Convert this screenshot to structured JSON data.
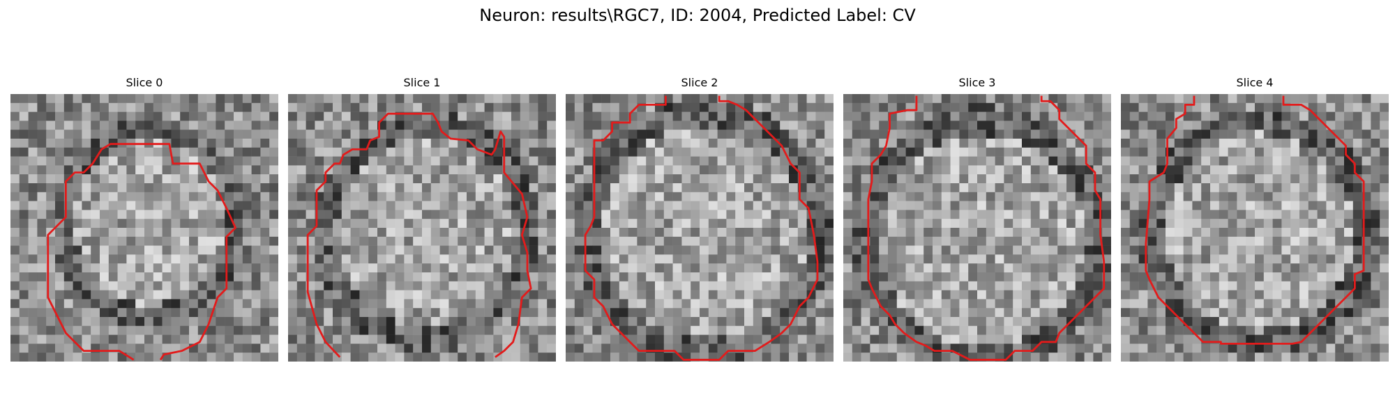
{
  "figure": {
    "title": "Neuron: results\\RGC7, ID: 2004, Predicted Label: CV"
  },
  "style": {
    "contour_color": "#e31b1b"
  },
  "slices": [
    {
      "title": "Slice 0",
      "seed": 11,
      "center": [
        15.5,
        14.5
      ],
      "radii": [
        9.5,
        10.5
      ],
      "contour": [
        [
          13.8,
          29.8
        ],
        [
          12.2,
          28.8
        ],
        [
          8.2,
          28.8
        ],
        [
          6.2,
          26.8
        ],
        [
          5.2,
          24.8
        ],
        [
          4.2,
          22.8
        ],
        [
          4.2,
          15.8
        ],
        [
          5.2,
          14.8
        ],
        [
          6.2,
          13.8
        ],
        [
          6.2,
          9.8
        ],
        [
          7.2,
          8.8
        ],
        [
          8.2,
          8.8
        ],
        [
          9.2,
          7.8
        ],
        [
          10.2,
          6.2
        ],
        [
          11.2,
          5.6
        ],
        [
          17.8,
          5.6
        ],
        [
          18.2,
          7.8
        ],
        [
          21.2,
          7.8
        ],
        [
          22.2,
          9.8
        ],
        [
          23.2,
          10.8
        ],
        [
          24.2,
          12.8
        ],
        [
          25.2,
          15.0
        ],
        [
          24.2,
          16.0
        ],
        [
          24.2,
          21.8
        ],
        [
          23.2,
          22.8
        ],
        [
          22.2,
          25.8
        ],
        [
          21.2,
          27.8
        ],
        [
          19.2,
          28.8
        ],
        [
          17.2,
          29.2
        ],
        [
          16.8,
          29.8
        ]
      ]
    },
    {
      "title": "Slice 1",
      "seed": 23,
      "center": [
        15.5,
        15.5
      ],
      "radii": [
        11.5,
        12.0
      ],
      "contour": [
        [
          5.8,
          29.5
        ],
        [
          4.2,
          27.8
        ],
        [
          3.2,
          25.8
        ],
        [
          2.2,
          22.2
        ],
        [
          2.2,
          15.8
        ],
        [
          3.2,
          14.8
        ],
        [
          3.2,
          12.8
        ],
        [
          3.2,
          10.8
        ],
        [
          4.2,
          9.8
        ],
        [
          4.2,
          8.8
        ],
        [
          5.2,
          7.8
        ],
        [
          5.8,
          7.8
        ],
        [
          6.2,
          6.8
        ],
        [
          7.2,
          6.2
        ],
        [
          8.8,
          6.2
        ],
        [
          9.2,
          5.2
        ],
        [
          10.2,
          4.8
        ],
        [
          10.2,
          3.2
        ],
        [
          11.2,
          2.2
        ],
        [
          16.2,
          2.2
        ],
        [
          16.8,
          3.2
        ],
        [
          17.2,
          4.2
        ],
        [
          18.2,
          5.0
        ],
        [
          20.2,
          5.2
        ],
        [
          21.2,
          6.2
        ],
        [
          22.8,
          6.8
        ],
        [
          23.2,
          6.2
        ],
        [
          23.8,
          4.2
        ],
        [
          24.2,
          4.8
        ],
        [
          24.2,
          6.8
        ],
        [
          24.2,
          8.8
        ],
        [
          25.2,
          10.0
        ],
        [
          26.2,
          11.2
        ],
        [
          26.8,
          13.8
        ],
        [
          26.2,
          15.8
        ],
        [
          26.8,
          17.8
        ],
        [
          26.8,
          19.8
        ],
        [
          27.2,
          21.8
        ],
        [
          26.2,
          22.8
        ],
        [
          25.8,
          25.8
        ],
        [
          25.2,
          27.8
        ],
        [
          24.2,
          28.8
        ],
        [
          23.2,
          29.5
        ]
      ]
    },
    {
      "title": "Slice 2",
      "seed": 37,
      "center": [
        15.5,
        15.5
      ],
      "radii": [
        13.0,
        13.5
      ],
      "contour": [
        [
          11.2,
          0.2
        ],
        [
          11.2,
          1.2
        ],
        [
          10.2,
          1.2
        ],
        [
          8.2,
          1.2
        ],
        [
          7.2,
          2.2
        ],
        [
          7.2,
          3.2
        ],
        [
          5.2,
          3.2
        ],
        [
          5.2,
          4.2
        ],
        [
          4.2,
          5.2
        ],
        [
          3.2,
          5.2
        ],
        [
          3.2,
          7.8
        ],
        [
          3.2,
          13.8
        ],
        [
          2.8,
          14.8
        ],
        [
          2.2,
          15.8
        ],
        [
          2.2,
          19.8
        ],
        [
          3.2,
          20.8
        ],
        [
          3.2,
          22.8
        ],
        [
          4.2,
          23.8
        ],
        [
          5.2,
          25.8
        ],
        [
          6.2,
          26.8
        ],
        [
          7.2,
          27.8
        ],
        [
          8.2,
          28.8
        ],
        [
          12.2,
          28.8
        ],
        [
          13.2,
          29.8
        ],
        [
          17.2,
          29.8
        ],
        [
          18.2,
          28.8
        ],
        [
          21.2,
          28.8
        ],
        [
          22.8,
          27.8
        ],
        [
          24.2,
          26.8
        ],
        [
          25.2,
          25.8
        ],
        [
          26.2,
          23.8
        ],
        [
          27.2,
          22.8
        ],
        [
          28.2,
          20.8
        ],
        [
          28.2,
          18.8
        ],
        [
          27.8,
          15.8
        ],
        [
          27.2,
          12.8
        ],
        [
          26.2,
          11.8
        ],
        [
          26.2,
          9.8
        ],
        [
          26.2,
          8.8
        ],
        [
          25.2,
          7.8
        ],
        [
          24.2,
          5.8
        ],
        [
          23.2,
          4.8
        ],
        [
          22.2,
          3.8
        ],
        [
          21.2,
          2.8
        ],
        [
          20.2,
          1.8
        ],
        [
          19.2,
          1.2
        ],
        [
          18.2,
          0.8
        ],
        [
          17.2,
          0.8
        ],
        [
          17.2,
          0.2
        ]
      ]
    },
    {
      "title": "Slice 3",
      "seed": 53,
      "center": [
        15.5,
        16.5
      ],
      "radii": [
        13.0,
        13.5
      ],
      "contour": [
        [
          8.2,
          0.2
        ],
        [
          8.2,
          1.8
        ],
        [
          7.2,
          1.8
        ],
        [
          5.2,
          2.2
        ],
        [
          5.2,
          3.8
        ],
        [
          4.8,
          5.8
        ],
        [
          4.2,
          6.8
        ],
        [
          3.2,
          7.8
        ],
        [
          3.2,
          9.8
        ],
        [
          2.8,
          11.8
        ],
        [
          2.8,
          20.8
        ],
        [
          3.2,
          21.8
        ],
        [
          4.2,
          23.8
        ],
        [
          5.2,
          24.8
        ],
        [
          5.8,
          25.8
        ],
        [
          6.8,
          26.8
        ],
        [
          8.2,
          27.8
        ],
        [
          9.2,
          28.2
        ],
        [
          10.2,
          28.8
        ],
        [
          12.2,
          28.8
        ],
        [
          14.2,
          29.8
        ],
        [
          18.2,
          29.8
        ],
        [
          19.2,
          28.8
        ],
        [
          21.2,
          28.8
        ],
        [
          22.2,
          27.8
        ],
        [
          23.8,
          27.8
        ],
        [
          24.2,
          26.8
        ],
        [
          25.2,
          25.8
        ],
        [
          26.2,
          24.8
        ],
        [
          27.2,
          23.8
        ],
        [
          28.2,
          22.8
        ],
        [
          29.2,
          21.8
        ],
        [
          29.2,
          18.8
        ],
        [
          28.8,
          15.8
        ],
        [
          28.8,
          11.8
        ],
        [
          28.2,
          10.8
        ],
        [
          28.2,
          8.8
        ],
        [
          27.2,
          7.8
        ],
        [
          27.2,
          5.8
        ],
        [
          26.2,
          4.8
        ],
        [
          25.2,
          3.8
        ],
        [
          24.2,
          2.8
        ],
        [
          24.2,
          1.8
        ],
        [
          23.2,
          0.8
        ],
        [
          22.2,
          0.8
        ],
        [
          22.2,
          0.2
        ]
      ]
    },
    {
      "title": "Slice 4",
      "seed": 71,
      "center": [
        15.5,
        15.5
      ],
      "radii": [
        12.0,
        12.5
      ],
      "contour": [
        [
          8.2,
          0.2
        ],
        [
          8.2,
          1.2
        ],
        [
          7.2,
          1.2
        ],
        [
          7.2,
          2.2
        ],
        [
          6.2,
          2.8
        ],
        [
          6.2,
          3.8
        ],
        [
          5.2,
          5.0
        ],
        [
          5.2,
          7.8
        ],
        [
          4.8,
          8.8
        ],
        [
          3.2,
          9.8
        ],
        [
          3.2,
          11.8
        ],
        [
          2.8,
          16.8
        ],
        [
          2.8,
          19.8
        ],
        [
          3.2,
          20.8
        ],
        [
          4.2,
          22.8
        ],
        [
          5.2,
          23.8
        ],
        [
          6.2,
          24.8
        ],
        [
          7.2,
          25.8
        ],
        [
          8.2,
          26.8
        ],
        [
          9.2,
          27.8
        ],
        [
          11.2,
          27.8
        ],
        [
          11.2,
          28.0
        ],
        [
          19.2,
          28.0
        ],
        [
          20.2,
          27.8
        ],
        [
          21.2,
          26.8
        ],
        [
          22.2,
          25.8
        ],
        [
          23.2,
          24.8
        ],
        [
          24.2,
          23.8
        ],
        [
          25.2,
          22.8
        ],
        [
          26.2,
          21.8
        ],
        [
          26.2,
          20.2
        ],
        [
          27.2,
          19.8
        ],
        [
          27.2,
          17.8
        ],
        [
          27.2,
          10.8
        ],
        [
          27.2,
          9.8
        ],
        [
          26.2,
          8.8
        ],
        [
          26.2,
          7.8
        ],
        [
          25.2,
          6.8
        ],
        [
          25.2,
          5.8
        ],
        [
          24.2,
          4.8
        ],
        [
          23.2,
          3.8
        ],
        [
          22.2,
          2.8
        ],
        [
          21.2,
          1.8
        ],
        [
          20.2,
          1.2
        ],
        [
          18.2,
          1.2
        ],
        [
          18.2,
          0.2
        ]
      ]
    }
  ]
}
